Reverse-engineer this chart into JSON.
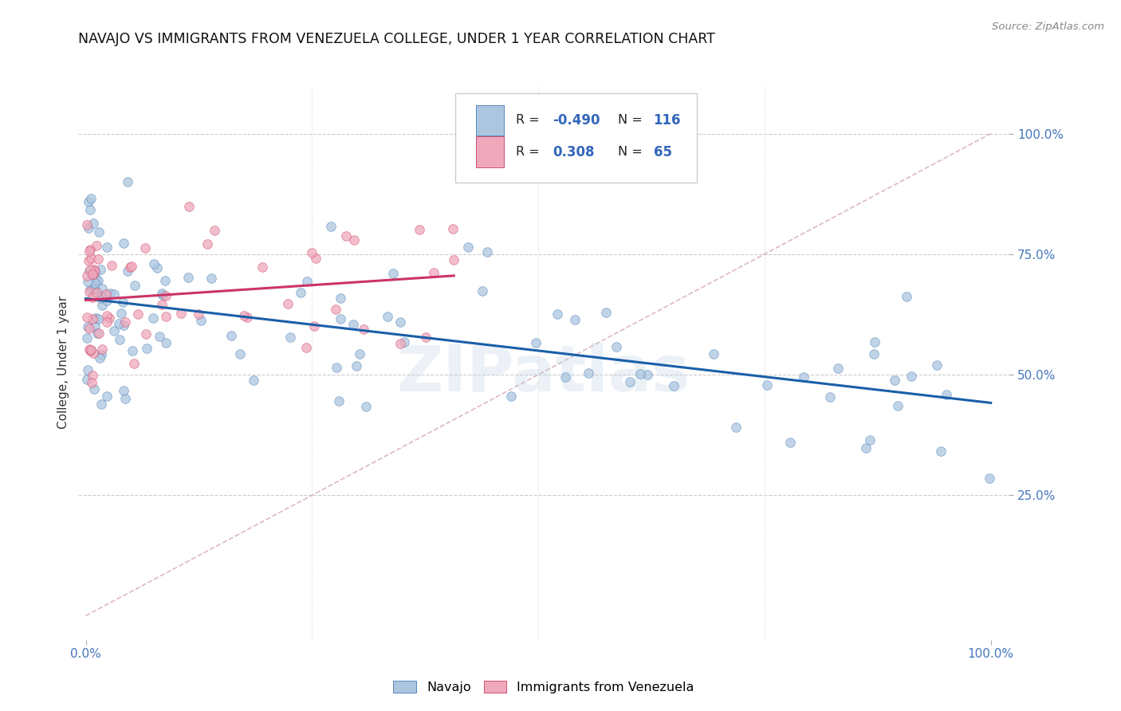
{
  "title": "NAVAJO VS IMMIGRANTS FROM VENEZUELA COLLEGE, UNDER 1 YEAR CORRELATION CHART",
  "source": "Source: ZipAtlas.com",
  "ylabel": "College, Under 1 year",
  "color_navajo": "#adc6e0",
  "color_venezuela": "#f0a8bc",
  "color_edge_navajo": "#5588bb",
  "color_edge_venezuela": "#d05070",
  "color_line_navajo": "#1a5fa8",
  "color_line_venezuela": "#cc3366",
  "color_diagonal": "#d4a8b8",
  "background_color": "#ffffff",
  "watermark": "ZIPatlas",
  "navajo_r": -0.49,
  "navajo_n": 116,
  "venezuela_r": 0.308,
  "venezuela_n": 65,
  "ytick_positions": [
    0.25,
    0.5,
    0.75,
    1.0
  ],
  "ytick_labels": [
    "25.0%",
    "50.0%",
    "75.0%",
    "100.0%"
  ],
  "xtick_positions": [
    0.0,
    1.0
  ],
  "xtick_labels": [
    "0.0%",
    "100.0%"
  ]
}
